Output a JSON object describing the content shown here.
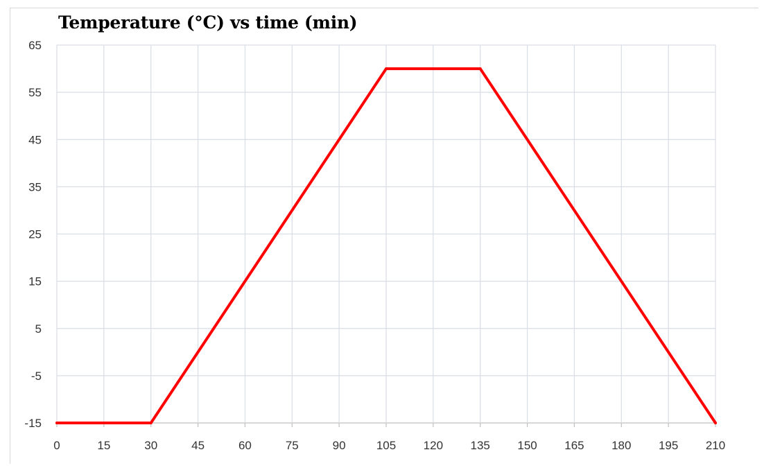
{
  "chart_data": {
    "type": "line",
    "title": "Temperature (°C) vs time (min)",
    "xlabel": "",
    "ylabel": "",
    "x_ticks": [
      0,
      15,
      30,
      45,
      60,
      75,
      90,
      105,
      120,
      135,
      150,
      165,
      180,
      195,
      210
    ],
    "y_ticks": [
      -15,
      -5,
      5,
      15,
      25,
      35,
      45,
      55,
      65
    ],
    "xlim": [
      0,
      210
    ],
    "ylim": [
      -15,
      65
    ],
    "grid": true,
    "legend": "none",
    "series": [
      {
        "color": "#ff0000",
        "x": [
          0,
          30,
          105,
          135,
          210
        ],
        "y": [
          -15,
          -15,
          60,
          60,
          -15
        ]
      }
    ]
  },
  "colors": {
    "grid": "#d9dde6",
    "axis": "#bfbfbf",
    "line": "#ff0000"
  }
}
